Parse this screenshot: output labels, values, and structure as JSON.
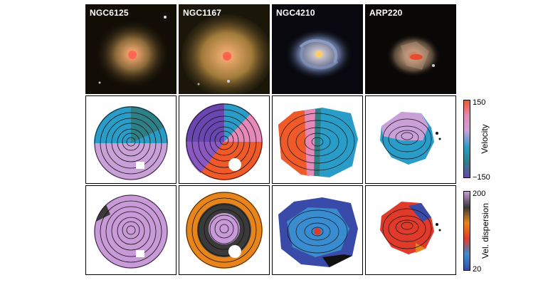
{
  "galaxies": [
    {
      "name": "NGC6125"
    },
    {
      "name": "NGC1167"
    },
    {
      "name": "NGC4210"
    },
    {
      "name": "ARP220"
    }
  ],
  "colorbars": {
    "velocity": {
      "title": "Velocity",
      "max_label": "150",
      "min_label": "−150",
      "colors": [
        "#f05a28",
        "#e58ab8",
        "#c9a0d8",
        "#2a9cc8",
        "#2f7f86",
        "#6a46b0"
      ]
    },
    "dispersion": {
      "title": "Vel. dispersion",
      "max_label": "200",
      "min_label": "20",
      "colors": [
        "#c89ad8",
        "#3a3a3a",
        "#e8851a",
        "#e03a2a",
        "#3a8cd0",
        "#3a4aa8"
      ]
    }
  }
}
